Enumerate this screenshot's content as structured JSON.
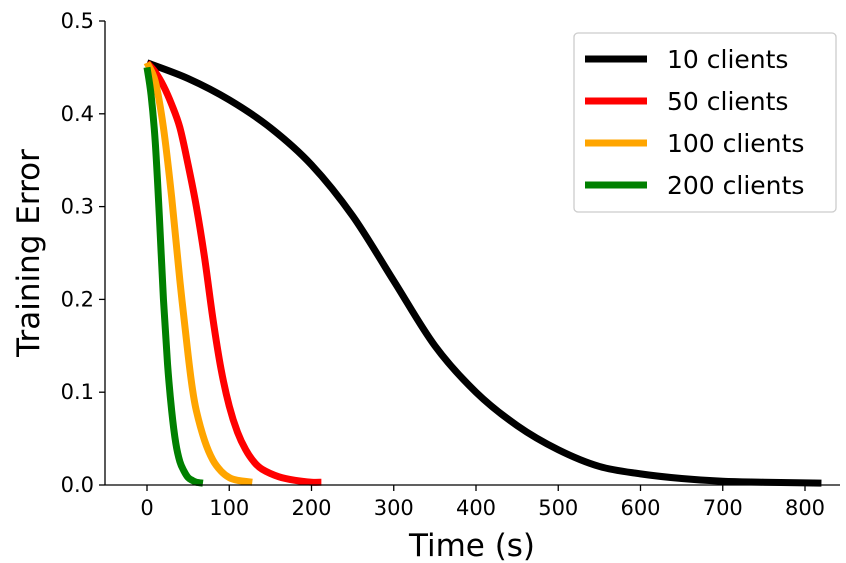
{
  "chart_data": {
    "type": "line",
    "title": "",
    "xlabel": "Time (s)",
    "ylabel": "Training Error",
    "xlim": [
      -50,
      840
    ],
    "ylim": [
      0.0,
      0.5
    ],
    "xticks": [
      0,
      100,
      200,
      300,
      400,
      500,
      600,
      700,
      800
    ],
    "yticks": [
      0.0,
      0.1,
      0.2,
      0.3,
      0.4,
      0.5
    ],
    "grid": false,
    "legend_position": "top-right",
    "series": [
      {
        "name": "10 clients",
        "color": "#000000",
        "x": [
          0,
          50,
          100,
          150,
          200,
          250,
          300,
          350,
          400,
          450,
          500,
          550,
          600,
          650,
          700,
          750,
          820
        ],
        "y": [
          0.455,
          0.438,
          0.415,
          0.385,
          0.345,
          0.29,
          0.22,
          0.15,
          0.1,
          0.064,
          0.038,
          0.02,
          0.012,
          0.007,
          0.004,
          0.003,
          0.002
        ]
      },
      {
        "name": "50 clients",
        "color": "#ff0000",
        "x": [
          0,
          10,
          20,
          30,
          40,
          50,
          60,
          70,
          80,
          90,
          100,
          110,
          120,
          130,
          140,
          160,
          180,
          200,
          212
        ],
        "y": [
          0.455,
          0.445,
          0.43,
          0.41,
          0.385,
          0.345,
          0.3,
          0.245,
          0.18,
          0.125,
          0.085,
          0.057,
          0.038,
          0.025,
          0.017,
          0.009,
          0.005,
          0.003,
          0.003
        ]
      },
      {
        "name": "100 clients",
        "color": "#ffa500",
        "x": [
          0,
          10,
          20,
          30,
          40,
          50,
          55,
          60,
          70,
          80,
          90,
          100,
          110,
          128
        ],
        "y": [
          0.455,
          0.435,
          0.385,
          0.31,
          0.22,
          0.14,
          0.105,
          0.08,
          0.048,
          0.027,
          0.015,
          0.008,
          0.005,
          0.003
        ]
      },
      {
        "name": "200 clients",
        "color": "#008000",
        "x": [
          0,
          5,
          10,
          15,
          20,
          25,
          30,
          35,
          40,
          45,
          50,
          55,
          60,
          68
        ],
        "y": [
          0.45,
          0.42,
          0.37,
          0.29,
          0.2,
          0.13,
          0.08,
          0.045,
          0.025,
          0.015,
          0.008,
          0.005,
          0.003,
          0.002
        ]
      }
    ]
  }
}
